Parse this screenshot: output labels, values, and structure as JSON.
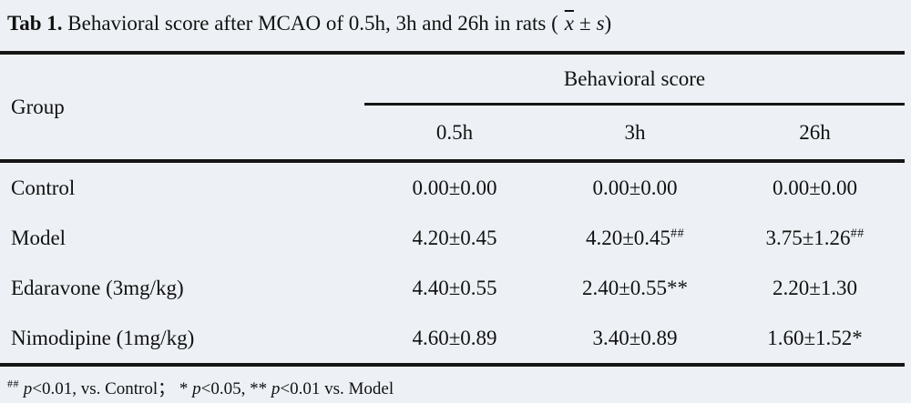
{
  "title": {
    "tag": "Tab 1.",
    "body": "Behavioral score after MCAO of 0.5h, 3h and 26h in rats (",
    "mean": "x",
    "pm": "±",
    "sd": "s",
    "close": ")"
  },
  "table": {
    "group_header": "Group",
    "span_header": "Behavioral score",
    "time_columns": [
      "0.5h",
      "3h",
      "26h"
    ],
    "rows": [
      {
        "group": "Control",
        "values": [
          {
            "text": "0.00±0.00",
            "sup": ""
          },
          {
            "text": "0.00±0.00",
            "sup": ""
          },
          {
            "text": "0.00±0.00",
            "sup": ""
          }
        ]
      },
      {
        "group": "Model",
        "values": [
          {
            "text": "4.20±0.45",
            "sup": ""
          },
          {
            "text": "4.20±0.45",
            "sup": "##"
          },
          {
            "text": "3.75±1.26",
            "sup": "##"
          }
        ]
      },
      {
        "group": "Edaravone (3mg/kg)",
        "values": [
          {
            "text": "4.40±0.55",
            "sup": ""
          },
          {
            "text": "2.40±0.55**",
            "sup": ""
          },
          {
            "text": "2.20±1.30",
            "sup": ""
          }
        ]
      },
      {
        "group": "Nimodipine (1mg/kg)",
        "values": [
          {
            "text": "4.60±0.89",
            "sup": ""
          },
          {
            "text": "3.40±0.89",
            "sup": ""
          },
          {
            "text": "1.60±1.52*",
            "sup": ""
          }
        ]
      }
    ]
  },
  "footnote": {
    "marker": "##",
    "p1_var": "p",
    "p1_text": "<0.01, vs. Control；",
    "star1": "*",
    "p2_var": "p",
    "p2_text": "<0.05,",
    "star2": "**",
    "p3_var": "p",
    "p3_text": "<0.01 vs. Model"
  },
  "colors": {
    "background": "#edf1f5",
    "rule": "#151515",
    "text": "#111111"
  }
}
